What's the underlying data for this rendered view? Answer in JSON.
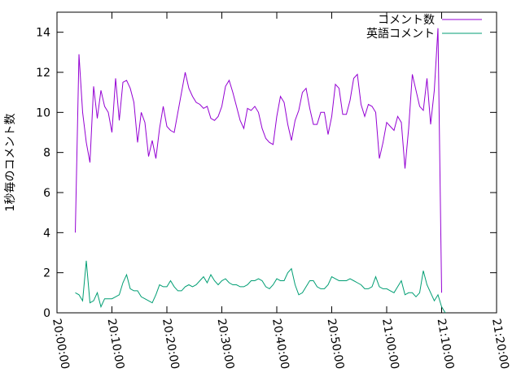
{
  "chart_data": {
    "type": "line",
    "title": "",
    "xlabel": "",
    "ylabel": "1秒毎のコメント数",
    "xlim": [
      "20:00:00",
      "21:20:00"
    ],
    "ylim": [
      0,
      15
    ],
    "x_ticks": [
      "20:00:00",
      "20:10:00",
      "20:20:00",
      "20:30:00",
      "20:40:00",
      "20:50:00",
      "21:00:00",
      "21:10:00",
      "21:20:00"
    ],
    "y_ticks": [
      "0",
      "2",
      "4",
      "6",
      "8",
      "10",
      "12",
      "14"
    ],
    "legend_position": "top-right",
    "grid": false,
    "x_start": "20:03:20",
    "x_step": "00:00:40",
    "series": [
      {
        "name": "コメント数",
        "color": "#9400d3",
        "values": [
          4.0,
          12.9,
          10.0,
          8.5,
          7.5,
          11.3,
          9.7,
          11.1,
          10.3,
          10.0,
          9.0,
          11.7,
          9.6,
          11.5,
          11.6,
          11.2,
          10.5,
          8.5,
          10.0,
          9.5,
          7.8,
          8.6,
          7.7,
          9.2,
          10.3,
          9.3,
          9.1,
          9.0,
          10.0,
          11.0,
          12.0,
          11.2,
          10.8,
          10.5,
          10.4,
          10.2,
          10.3,
          9.7,
          9.6,
          9.8,
          10.3,
          11.3,
          11.6,
          11.0,
          10.3,
          9.6,
          9.2,
          10.2,
          10.1,
          10.3,
          10.0,
          9.2,
          8.7,
          8.5,
          8.4,
          9.8,
          10.8,
          10.5,
          9.4,
          8.6,
          9.6,
          10.1,
          11.0,
          11.2,
          10.2,
          9.4,
          9.4,
          10.0,
          10.0,
          8.9,
          9.8,
          11.4,
          11.2,
          9.9,
          9.9,
          10.6,
          11.7,
          11.9,
          10.4,
          9.8,
          10.4,
          10.3,
          10.0,
          7.7,
          8.5,
          9.5,
          9.3,
          9.1,
          9.8,
          9.5,
          7.2,
          9.2,
          11.9,
          11.1,
          10.3,
          10.1,
          11.7,
          9.4,
          11.1,
          14.2,
          1.0
        ],
        "name_key": "legend.comments"
      },
      {
        "name": "英語コメント",
        "color": "#009e73",
        "values": [
          1.0,
          0.9,
          0.6,
          2.6,
          0.5,
          0.6,
          1.0,
          0.3,
          0.7,
          0.7,
          0.7,
          0.8,
          0.9,
          1.5,
          1.9,
          1.2,
          1.1,
          1.1,
          0.8,
          0.7,
          0.6,
          0.5,
          0.9,
          1.4,
          1.3,
          1.3,
          1.6,
          1.3,
          1.1,
          1.1,
          1.3,
          1.4,
          1.3,
          1.4,
          1.6,
          1.8,
          1.5,
          1.9,
          1.6,
          1.4,
          1.6,
          1.7,
          1.5,
          1.4,
          1.4,
          1.3,
          1.3,
          1.4,
          1.6,
          1.6,
          1.7,
          1.6,
          1.3,
          1.2,
          1.4,
          1.7,
          1.6,
          1.6,
          2.0,
          2.2,
          1.4,
          0.9,
          1.0,
          1.3,
          1.6,
          1.6,
          1.3,
          1.2,
          1.2,
          1.4,
          1.8,
          1.7,
          1.6,
          1.6,
          1.6,
          1.7,
          1.6,
          1.5,
          1.4,
          1.2,
          1.2,
          1.3,
          1.8,
          1.3,
          1.2,
          1.2,
          1.1,
          1.0,
          1.3,
          1.6,
          0.9,
          1.0,
          1.0,
          0.8,
          1.0,
          2.1,
          1.4,
          1.0,
          0.6,
          0.9,
          0.3,
          0.0
        ]
      }
    ]
  },
  "legend": {
    "comments": "コメント数",
    "english_comments": "英語コメント"
  }
}
